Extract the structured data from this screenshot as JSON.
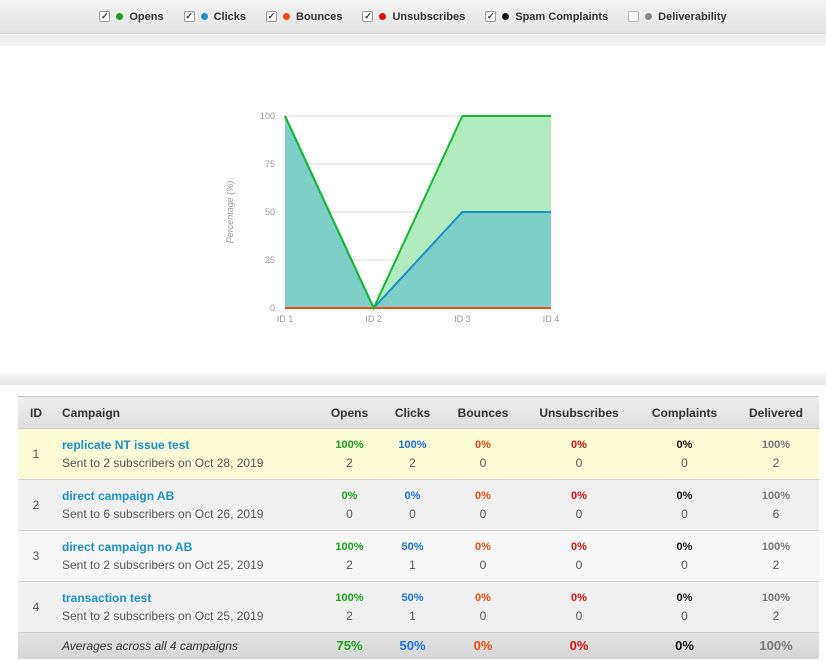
{
  "legend": [
    {
      "label": "Opens",
      "checked": true,
      "color": "#17a31a"
    },
    {
      "label": "Clicks",
      "checked": true,
      "color": "#1a8fc9"
    },
    {
      "label": "Bounces",
      "checked": true,
      "color": "#f04a0d"
    },
    {
      "label": "Unsubscribes",
      "checked": true,
      "color": "#e00d0d"
    },
    {
      "label": "Spam Complaints",
      "checked": true,
      "color": "#111111"
    },
    {
      "label": "Deliverability",
      "checked": false,
      "color": "#888888"
    }
  ],
  "chart_data": {
    "type": "area",
    "categories": [
      "ID 1",
      "ID 2",
      "ID 3",
      "ID 4"
    ],
    "ylabel": "Percentage (%)",
    "ylim": [
      0,
      100
    ],
    "yticks": [
      "0",
      "25",
      "50",
      "75",
      "100"
    ],
    "series": [
      {
        "name": "Opens",
        "values": [
          100,
          0,
          100,
          100
        ],
        "color": "#17b830",
        "fill": "#b2ecbe"
      },
      {
        "name": "Clicks",
        "values": [
          100,
          0,
          50,
          50
        ],
        "color": "#1a8fc9",
        "fill": "#7dcfc7"
      },
      {
        "name": "Bounces",
        "values": [
          0,
          0,
          0,
          0
        ],
        "color": "#f04a0d"
      },
      {
        "name": "Unsubscribes",
        "values": [
          0,
          0,
          0,
          0
        ],
        "color": "#e00d0d"
      }
    ],
    "grid": true
  },
  "table": {
    "headers": {
      "id": "ID",
      "campaign": "Campaign",
      "opens": "Opens",
      "clicks": "Clicks",
      "bounces": "Bounces",
      "unsubscribes": "Unsubscribes",
      "complaints": "Complaints",
      "delivered": "Delivered"
    },
    "rows": [
      {
        "id": "1",
        "name": "replicate NT issue test",
        "sub": "Sent to 2 subscribers on Oct 28, 2019",
        "opens": {
          "pct": "100%",
          "n": "2"
        },
        "clicks": {
          "pct": "100%",
          "n": "2"
        },
        "bounces": {
          "pct": "0%",
          "n": "0"
        },
        "unsubscribes": {
          "pct": "0%",
          "n": "0"
        },
        "complaints": {
          "pct": "0%",
          "n": "0"
        },
        "delivered": {
          "pct": "100%",
          "n": "2"
        }
      },
      {
        "id": "2",
        "name": "direct campaign AB",
        "sub": "Sent to 6 subscribers on Oct 26, 2019",
        "opens": {
          "pct": "0%",
          "n": "0"
        },
        "clicks": {
          "pct": "0%",
          "n": "0"
        },
        "bounces": {
          "pct": "0%",
          "n": "0"
        },
        "unsubscribes": {
          "pct": "0%",
          "n": "0"
        },
        "complaints": {
          "pct": "0%",
          "n": "0"
        },
        "delivered": {
          "pct": "100%",
          "n": "6"
        }
      },
      {
        "id": "3",
        "name": "direct campaign no AB",
        "sub": "Sent to 2 subscribers on Oct 25, 2019",
        "opens": {
          "pct": "100%",
          "n": "2"
        },
        "clicks": {
          "pct": "50%",
          "n": "1"
        },
        "bounces": {
          "pct": "0%",
          "n": "0"
        },
        "unsubscribes": {
          "pct": "0%",
          "n": "0"
        },
        "complaints": {
          "pct": "0%",
          "n": "0"
        },
        "delivered": {
          "pct": "100%",
          "n": "2"
        }
      },
      {
        "id": "4",
        "name": "transaction test",
        "sub": "Sent to 2 subscribers on Oct 25, 2019",
        "opens": {
          "pct": "100%",
          "n": "2"
        },
        "clicks": {
          "pct": "50%",
          "n": "1"
        },
        "bounces": {
          "pct": "0%",
          "n": "0"
        },
        "unsubscribes": {
          "pct": "0%",
          "n": "0"
        },
        "complaints": {
          "pct": "0%",
          "n": "0"
        },
        "delivered": {
          "pct": "100%",
          "n": "2"
        }
      }
    ],
    "averages": {
      "label": "Averages across all 4 campaigns",
      "opens": "75%",
      "clicks": "50%",
      "bounces": "0%",
      "unsubscribes": "0%",
      "complaints": "0%",
      "delivered": "100%"
    }
  }
}
